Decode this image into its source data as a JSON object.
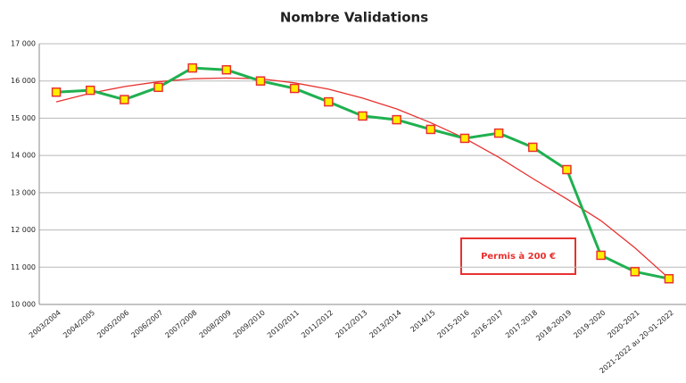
{
  "chart_data": {
    "type": "line",
    "title": "Nombre Validations",
    "categories": [
      "2003/2004",
      "2004/2005",
      "2005/2006",
      "2006/2007",
      "2007/2008",
      "2008/2009",
      "2009/2010",
      "2010/2011",
      "2011/2012",
      "2012/2013",
      "2013/2014",
      "2014/15",
      "2015-2016",
      "2016-2017",
      "2017-2018",
      "2018-20019",
      "2019-2020",
      "2020-2021",
      "2021-2022 au 20-01-2022"
    ],
    "series": [
      {
        "color": "#e8312f",
        "values": [
          15440,
          15670,
          15850,
          15980,
          16060,
          16080,
          16060,
          15950,
          15780,
          15540,
          15250,
          14880,
          14460,
          13950,
          13380,
          12830,
          12250,
          11520,
          10700
        ]
      },
      {
        "color": "#1fb050",
        "marker": {
          "fill": "#ffee00",
          "stroke": "#e8312f"
        },
        "values": [
          15700,
          15750,
          15500,
          15830,
          16350,
          16300,
          16000,
          15800,
          15440,
          15060,
          14960,
          14700,
          14460,
          14600,
          14220,
          13620,
          11320,
          10880,
          10690
        ]
      }
    ],
    "ylim": [
      10000,
      17000
    ],
    "yticks": [
      {
        "value": 10000,
        "label": "10 000"
      },
      {
        "value": 11000,
        "label": "11 000"
      },
      {
        "value": 12000,
        "label": "12 000"
      },
      {
        "value": 13000,
        "label": "13 000"
      },
      {
        "value": 14000,
        "label": "14 000"
      },
      {
        "value": 15000,
        "label": "15 000"
      },
      {
        "value": 16000,
        "label": "16 000"
      },
      {
        "value": 17000,
        "label": "17 000"
      }
    ],
    "grid": true,
    "annotation": "Permis à 200 €"
  }
}
